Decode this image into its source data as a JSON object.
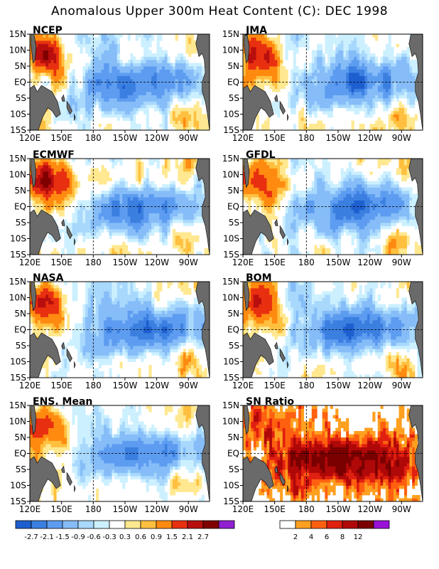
{
  "page": {
    "title": "Anomalous Upper 300m Heat Content (C): DEC 1998"
  },
  "colors": {
    "land": "#6a6a6a",
    "frame": "#000000",
    "dashline": "#000000"
  },
  "chart_data": {
    "type": "heatmap",
    "field": "upper 300m heat content anomaly",
    "units": "C",
    "x_ticks": [
      "120E",
      "150E",
      "180",
      "150W",
      "120W",
      "90W"
    ],
    "y_ticks": [
      "15N",
      "10N",
      "5N",
      "EQ",
      "5S",
      "10S",
      "15S"
    ],
    "xlim_lon": [
      120,
      290
    ],
    "ylim_lat": [
      -15,
      15
    ],
    "reference_lines": {
      "dateline_lon": 180,
      "equator_lat": 0
    },
    "panels": [
      {
        "name": "NCEP",
        "kind": "anomaly"
      },
      {
        "name": "JMA",
        "kind": "anomaly"
      },
      {
        "name": "ECMWF",
        "kind": "anomaly"
      },
      {
        "name": "GFDL",
        "kind": "anomaly"
      },
      {
        "name": "NASA",
        "kind": "anomaly"
      },
      {
        "name": "BOM",
        "kind": "anomaly"
      },
      {
        "name": "ENS. Mean",
        "kind": "anomaly"
      },
      {
        "name": "SN Ratio",
        "kind": "ratio"
      }
    ],
    "anomaly_legend": {
      "labels": [
        "-2.7",
        "-2.1",
        "-1.5",
        "-0.9",
        "-0.6",
        "-0.3",
        "0.3",
        "0.6",
        "0.9",
        "1.5",
        "2.1",
        "2.7"
      ],
      "levels": [
        -2.7,
        -2.1,
        -1.5,
        -0.9,
        -0.6,
        -0.3,
        0.3,
        0.6,
        0.9,
        1.5,
        2.1,
        2.7
      ],
      "colors": [
        "#1e5fd0",
        "#3b7fe0",
        "#5d9cf0",
        "#86bdf8",
        "#a8d8fc",
        "#cdf0ff",
        "#ffffff",
        "#ffe890",
        "#ffc040",
        "#ff8a10",
        "#e83010",
        "#b80e0e",
        "#800000",
        "#9020d0"
      ]
    },
    "ratio_legend": {
      "labels": [
        "2",
        "4",
        "6",
        "8",
        "12"
      ],
      "levels": [
        2,
        4,
        6,
        8,
        12
      ],
      "colors": [
        "#ffffff",
        "#ffa020",
        "#ff6010",
        "#e02010",
        "#b00808",
        "#7a0000",
        "#9a10d8"
      ]
    }
  }
}
